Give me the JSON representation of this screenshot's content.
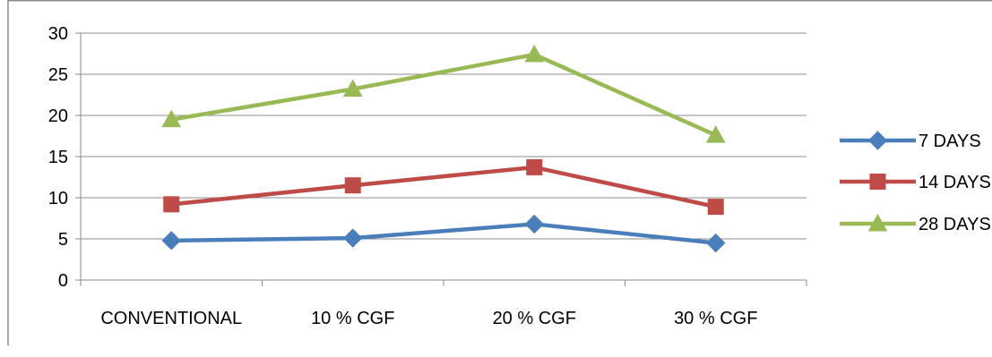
{
  "chart_data": {
    "type": "line",
    "title": "",
    "xlabel": "",
    "ylabel": "",
    "categories": [
      "CONVENTIONAL",
      "10 % CGF",
      "20 % CGF",
      "30 % CGF"
    ],
    "ylim": [
      0,
      30
    ],
    "yticks": [
      0,
      5,
      10,
      15,
      20,
      25,
      30
    ],
    "grid": true,
    "legend": "right",
    "series": [
      {
        "name": "7 DAYS",
        "color": "#4A7EBB",
        "marker": "diamond",
        "values": [
          4.8,
          5.1,
          6.8,
          4.5
        ]
      },
      {
        "name": "14 DAYS",
        "color": "#BE4B48",
        "marker": "square",
        "values": [
          9.2,
          11.5,
          13.7,
          8.9
        ]
      },
      {
        "name": "28 DAYS",
        "color": "#98B954",
        "marker": "triangle",
        "values": [
          19.5,
          23.2,
          27.4,
          17.6
        ]
      }
    ]
  }
}
